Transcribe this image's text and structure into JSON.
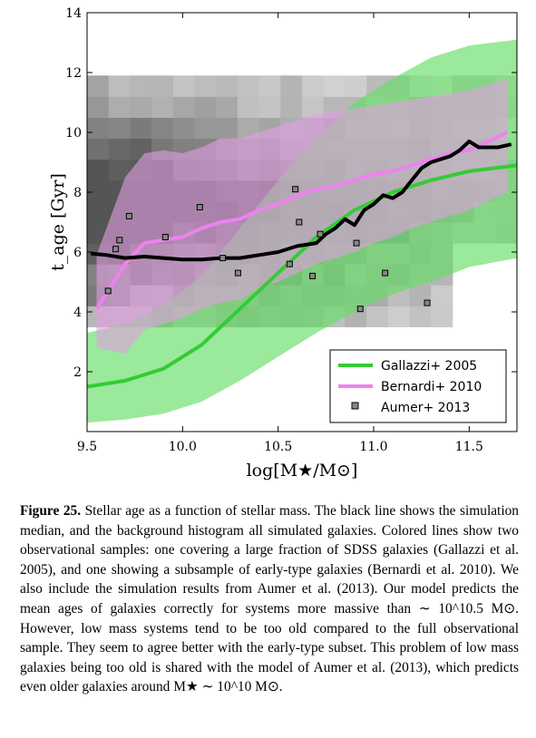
{
  "figure": {
    "chart_data": {
      "type": "line",
      "xlabel": "log[M★/M⊙]",
      "ylabel": "t_age [Gyr]",
      "xlim": [
        9.5,
        11.75
      ],
      "ylim": [
        0,
        14
      ],
      "xticks": [
        9.5,
        10.0,
        10.5,
        11.0,
        11.5
      ],
      "xtick_labels": [
        "9.5",
        "10.0",
        "10.5",
        "11.0",
        "11.5"
      ],
      "yticks": [
        2,
        4,
        6,
        8,
        10,
        12,
        14
      ],
      "ytick_labels": [
        "2",
        "4",
        "6",
        "8",
        "10",
        "12",
        "14"
      ],
      "legend_position": "lower-right",
      "series": [
        {
          "name": "Gallazzi+ 2005",
          "color": "#33cc33",
          "x": [
            9.5,
            9.7,
            9.9,
            10.1,
            10.3,
            10.5,
            10.7,
            10.9,
            11.1,
            11.3,
            11.5,
            11.75
          ],
          "values": [
            1.5,
            1.7,
            2.1,
            2.9,
            4.1,
            5.3,
            6.5,
            7.4,
            8.0,
            8.4,
            8.7,
            8.9
          ],
          "band_low": [
            0.3,
            0.4,
            0.6,
            1.0,
            1.7,
            2.5,
            3.3,
            4.0,
            4.6,
            5.0,
            5.5,
            5.8
          ],
          "band_high": [
            3.3,
            3.6,
            4.2,
            5.2,
            6.8,
            8.4,
            9.8,
            11.0,
            11.8,
            12.5,
            12.9,
            13.1
          ]
        },
        {
          "name": "Bernardi+ 2010",
          "color": "#ee82ee",
          "x": [
            9.55,
            9.7,
            9.8,
            9.9,
            10.0,
            10.1,
            10.2,
            10.3,
            10.4,
            10.5,
            10.6,
            10.7,
            10.8,
            10.9,
            11.0,
            11.1,
            11.2,
            11.3,
            11.4,
            11.5,
            11.6,
            11.7
          ],
          "values": [
            4.1,
            5.6,
            6.3,
            6.4,
            6.5,
            6.8,
            7.0,
            7.1,
            7.4,
            7.6,
            7.9,
            8.1,
            8.2,
            8.4,
            8.6,
            8.7,
            8.9,
            9.1,
            9.3,
            9.4,
            9.7,
            10.0
          ],
          "band_low": [
            2.8,
            2.6,
            3.4,
            3.6,
            3.8,
            4.1,
            4.3,
            4.4,
            4.8,
            5.0,
            5.3,
            5.6,
            5.8,
            6.0,
            6.3,
            6.5,
            6.8,
            7.0,
            7.2,
            7.4,
            7.7,
            8.0
          ],
          "band_high": [
            5.9,
            8.5,
            9.3,
            9.4,
            9.3,
            9.5,
            9.8,
            9.8,
            10.0,
            10.2,
            10.4,
            10.6,
            10.7,
            10.8,
            10.9,
            11.0,
            11.1,
            11.2,
            11.3,
            11.4,
            11.6,
            11.8
          ]
        },
        {
          "name": "Simulation median",
          "color": "#000000",
          "x": [
            9.52,
            9.6,
            9.7,
            9.8,
            9.9,
            10.0,
            10.1,
            10.2,
            10.3,
            10.4,
            10.5,
            10.6,
            10.7,
            10.75,
            10.8,
            10.85,
            10.9,
            10.95,
            11.0,
            11.05,
            11.1,
            11.15,
            11.2,
            11.25,
            11.3,
            11.35,
            11.4,
            11.45,
            11.5,
            11.55,
            11.6,
            11.65,
            11.72
          ],
          "values": [
            5.95,
            5.9,
            5.8,
            5.85,
            5.8,
            5.75,
            5.75,
            5.8,
            5.8,
            5.9,
            6.0,
            6.2,
            6.3,
            6.6,
            6.8,
            7.1,
            6.9,
            7.4,
            7.6,
            7.9,
            7.8,
            8.0,
            8.4,
            8.8,
            9.0,
            9.1,
            9.2,
            9.4,
            9.7,
            9.5,
            9.5,
            9.5,
            9.6
          ]
        },
        {
          "name": "Aumer+ 2013",
          "type": "scatter",
          "color": "#888888",
          "x": [
            9.61,
            9.65,
            9.67,
            9.72,
            9.91,
            10.09,
            10.21,
            10.29,
            10.56,
            10.59,
            10.61,
            10.68,
            10.72,
            10.91,
            10.93,
            11.06,
            11.28
          ],
          "values": [
            4.7,
            6.1,
            6.4,
            7.2,
            6.5,
            7.5,
            5.8,
            5.3,
            5.6,
            8.1,
            7.0,
            5.2,
            6.6,
            6.3,
            4.1,
            5.3,
            4.3
          ]
        }
      ],
      "histogram_note": "background grayscale 2D histogram of all simulated galaxies"
    },
    "legend": {
      "items": [
        {
          "label": "Gallazzi+ 2005",
          "color": "#33cc33",
          "marker": "line"
        },
        {
          "label": "Bernardi+ 2010",
          "color": "#ee82ee",
          "marker": "line"
        },
        {
          "label": "Aumer+ 2013",
          "color": "#888888",
          "marker": "square"
        }
      ]
    }
  },
  "caption": {
    "label": "Figure 25.",
    "text": "Stellar age as a function of stellar mass. The black line shows the simulation median, and the background histogram all simulated galaxies. Colored lines show two observational samples: one covering a large fraction of SDSS galaxies (Gallazzi et al. 2005), and one showing a subsample of early-type galaxies (Bernardi et al. 2010). We also include the simulation results from Aumer et al. (2013). Our model predicts the mean ages of galaxies correctly for systems more massive than ∼ 10^10.5 M⊙. However, low mass systems tend to be too old compared to the full observational sample. They seem to agree better with the early-type subset. This problem of low mass galaxies being too old is shared with the model of Aumer et al. (2013), which predicts even older galaxies around M★ ∼ 10^10 M⊙."
  }
}
